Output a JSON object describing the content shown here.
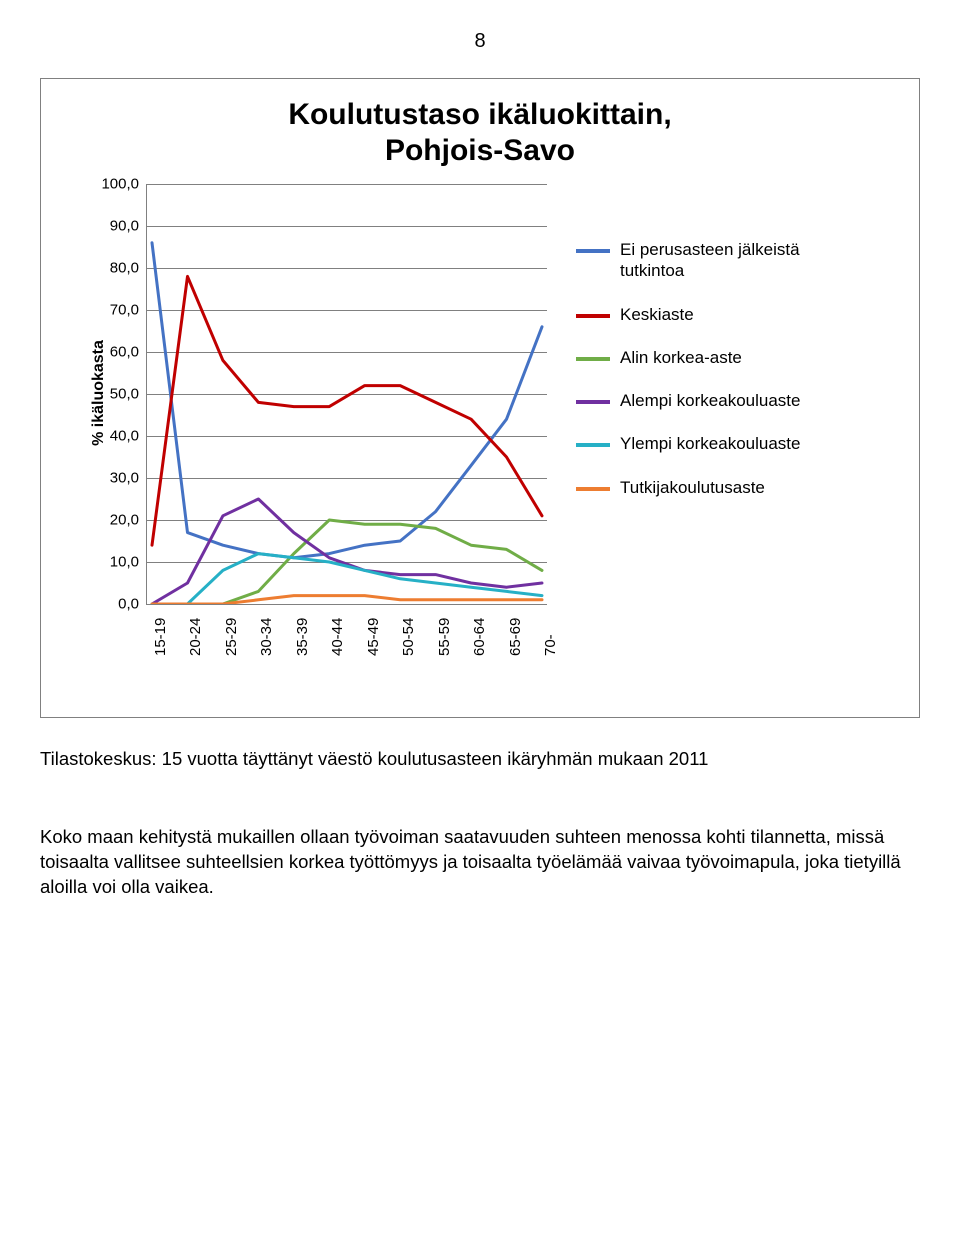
{
  "page_number": "8",
  "chart": {
    "type": "line",
    "title_line1": "Koulutustaso ikäluokittain,",
    "title_line2": "Pohjois-Savo",
    "ylabel": "% ikäluokasta",
    "background_color": "#ffffff",
    "grid_color": "#808080",
    "border_color": "#808080",
    "title_fontsize": 30,
    "label_fontsize": 16,
    "tick_fontsize": 15,
    "line_width": 3,
    "ylim": [
      0,
      100
    ],
    "yticks": [
      0,
      10,
      20,
      30,
      40,
      50,
      60,
      70,
      80,
      90,
      100
    ],
    "ytick_labels": [
      "0,0",
      "10,0",
      "20,0",
      "30,0",
      "40,0",
      "50,0",
      "60,0",
      "70,0",
      "80,0",
      "90,0",
      "100,0"
    ],
    "categories": [
      "15-19",
      "20-24",
      "25-29",
      "30-34",
      "35-39",
      "40-44",
      "45-49",
      "50-54",
      "55-59",
      "60-64",
      "65-69",
      "70-"
    ],
    "series": [
      {
        "name": "Ei perusasteen jälkeistä tutkintoa",
        "color": "#4472c4",
        "values": [
          86,
          17,
          14,
          12,
          11,
          12,
          14,
          15,
          22,
          33,
          44,
          66
        ]
      },
      {
        "name": "Keskiaste",
        "color": "#c00000",
        "values": [
          14,
          78,
          58,
          48,
          47,
          47,
          52,
          52,
          48,
          44,
          35,
          21
        ]
      },
      {
        "name": "Alin korkea-aste",
        "color": "#70ad47",
        "values": [
          0,
          0,
          0,
          3,
          12,
          20,
          19,
          19,
          18,
          14,
          13,
          8
        ]
      },
      {
        "name": "Alempi korkeakouluaste",
        "color": "#7030a0",
        "values": [
          0,
          5,
          21,
          25,
          17,
          11,
          8,
          7,
          7,
          5,
          4,
          5
        ]
      },
      {
        "name": "Ylempi korkeakouluaste",
        "color": "#26b0c6",
        "values": [
          0,
          0,
          8,
          12,
          11,
          10,
          8,
          6,
          5,
          4,
          3,
          2
        ]
      },
      {
        "name": "Tutkijakoulutusaste",
        "color": "#ed7d31",
        "values": [
          0,
          0,
          0,
          1,
          2,
          2,
          2,
          1,
          1,
          1,
          1,
          1
        ]
      }
    ],
    "legend": {
      "position": "right",
      "fontsize": 17
    }
  },
  "caption": "Tilastokeskus: 15 vuotta täyttänyt väestö koulutusasteen ikäryhmän mukaan 2011",
  "body_paragraph": "Koko maan kehitystä mukaillen ollaan työvoiman saatavuuden suhteen menossa kohti tilannetta, missä toisaalta vallitsee suhteellsien korkea työttömyys ja toisaalta työelämää vaivaa työvoimapula, joka tietyillä aloilla voi olla vaikea."
}
